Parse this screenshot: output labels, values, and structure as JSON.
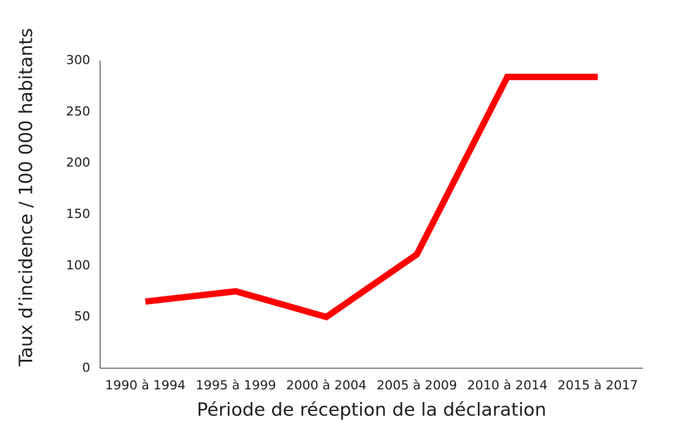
{
  "chart_data": {
    "type": "line",
    "x_label": "Période de réception de la déclaration",
    "y_label": "Taux d’incidence / 100 000 habitants",
    "categories": [
      "1990 à 1994",
      "1995 à 1999",
      "2000 à 2004",
      "2005 à 2009",
      "2010 à 2014",
      "2015 à 2017"
    ],
    "series": [
      {
        "color": "#ff0000",
        "values": [
          65,
          75,
          50,
          111,
          284,
          284
        ]
      }
    ],
    "ylim": [
      0,
      300
    ],
    "yticks": [
      0,
      50,
      100,
      150,
      200,
      250,
      300
    ],
    "grid": false
  }
}
